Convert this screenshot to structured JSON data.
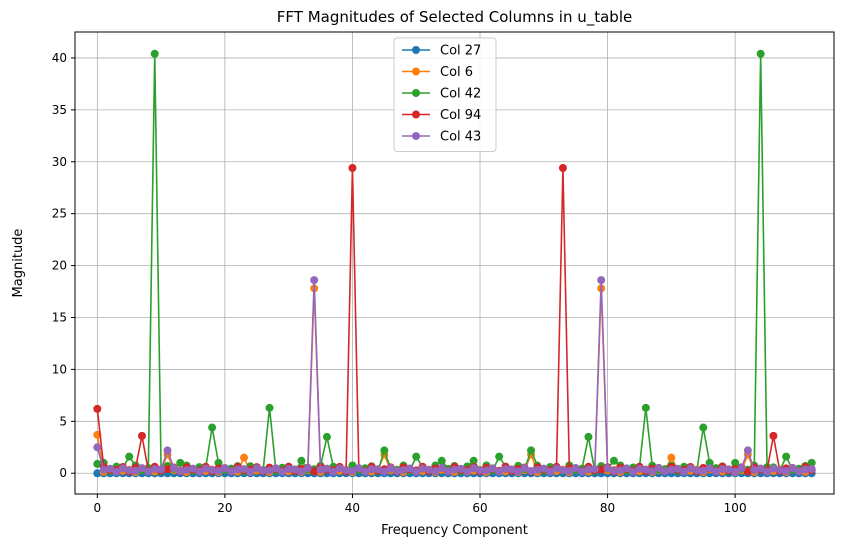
{
  "chart_data": {
    "type": "line",
    "title": "FFT Magnitudes of Selected Columns in u_table",
    "xlabel": "Frequency Component",
    "ylabel": "Magnitude",
    "xlim": [
      -3.5,
      115.5
    ],
    "ylim": [
      -2.0,
      42.5
    ],
    "xticks": [
      0,
      20,
      40,
      60,
      80,
      100
    ],
    "yticks": [
      0,
      5,
      10,
      15,
      20,
      25,
      30,
      35,
      40
    ],
    "grid": true,
    "legend_position": "top-center",
    "series": [
      {
        "name": "Col 27",
        "color": "#1f77b4",
        "x_start": 0,
        "x_end": 112,
        "base": 0.0,
        "spikes": []
      },
      {
        "name": "Col 6",
        "color": "#ff7f0e",
        "x_start": 0,
        "x_end": 112,
        "base": 0.3,
        "spikes": [
          [
            0,
            3.7
          ],
          [
            11,
            1.8
          ],
          [
            23,
            1.5
          ],
          [
            34,
            17.8
          ],
          [
            45,
            1.8
          ],
          [
            68,
            1.8
          ],
          [
            79,
            17.8
          ],
          [
            90,
            1.5
          ],
          [
            102,
            1.8
          ]
        ]
      },
      {
        "name": "Col 42",
        "color": "#2ca02c",
        "x_start": 0,
        "x_end": 112,
        "base": 0.6,
        "spikes": [
          [
            0,
            0.9
          ],
          [
            1,
            1.0
          ],
          [
            5,
            1.6
          ],
          [
            9,
            40.4
          ],
          [
            13,
            1.0
          ],
          [
            18,
            4.4
          ],
          [
            19,
            1.0
          ],
          [
            27,
            6.3
          ],
          [
            32,
            1.2
          ],
          [
            36,
            3.5
          ],
          [
            45,
            2.2
          ],
          [
            50,
            1.6
          ],
          [
            54,
            1.2
          ],
          [
            59,
            1.2
          ],
          [
            63,
            1.6
          ],
          [
            68,
            2.2
          ],
          [
            77,
            3.5
          ],
          [
            81,
            1.2
          ],
          [
            86,
            6.3
          ],
          [
            95,
            4.4
          ],
          [
            96,
            1.0
          ],
          [
            100,
            1.0
          ],
          [
            104,
            40.4
          ],
          [
            108,
            1.6
          ],
          [
            112,
            1.0
          ]
        ]
      },
      {
        "name": "Col 94",
        "color": "#d62728",
        "x_start": 0,
        "x_end": 112,
        "base": 0.5,
        "spikes": [
          [
            0,
            6.2
          ],
          [
            7,
            3.6
          ],
          [
            40,
            29.4
          ],
          [
            73,
            29.4
          ],
          [
            106,
            3.6
          ]
        ]
      },
      {
        "name": "Col 43",
        "color": "#9467bd",
        "x_start": 0,
        "x_end": 112,
        "base": 0.4,
        "spikes": [
          [
            0,
            2.5
          ],
          [
            11,
            2.2
          ],
          [
            34,
            18.6
          ],
          [
            79,
            18.6
          ],
          [
            102,
            2.2
          ]
        ]
      }
    ]
  }
}
